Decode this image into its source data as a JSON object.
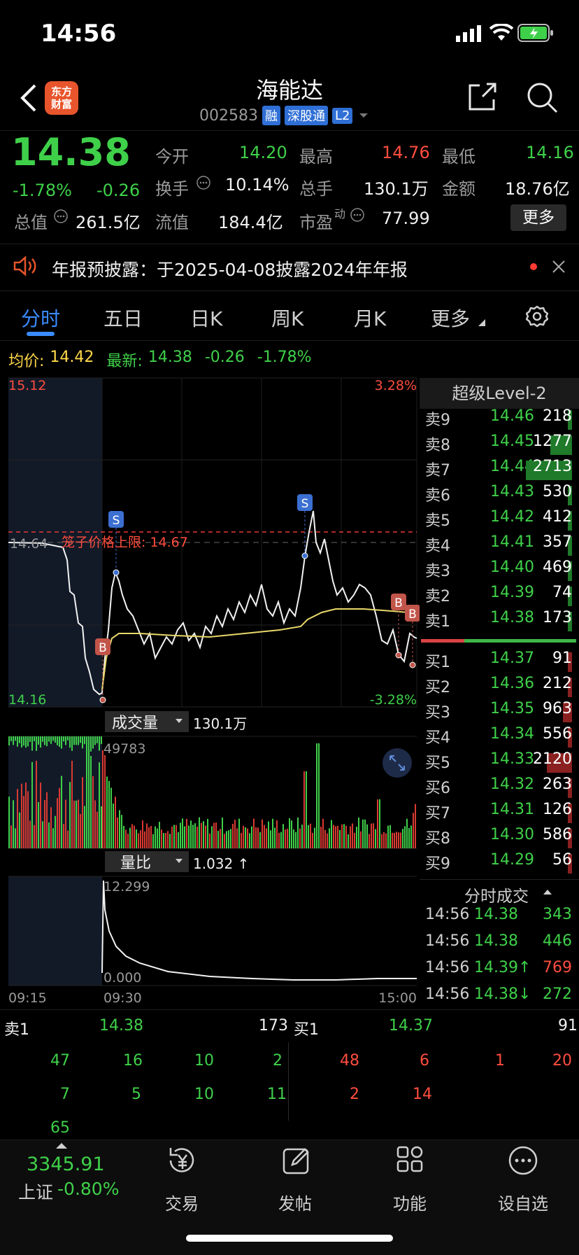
{
  "status_bar": {
    "time": "14:56"
  },
  "header": {
    "logo_text": "东方\n财富",
    "logo_line1": "东方",
    "logo_line2": "财富",
    "title": "海能达",
    "code": "002583",
    "tags": [
      "融",
      "深股通",
      "L2"
    ]
  },
  "quote": {
    "price": "14.38",
    "change_pct": "-1.78%",
    "change": "-0.26",
    "open_label": "今开",
    "open": "14.20",
    "high_label": "最高",
    "high": "14.76",
    "low_label": "最低",
    "low": "14.16",
    "turnover_label": "换手",
    "turnover": "10.14%",
    "volume_label": "总手",
    "volume": "130.1万",
    "amount_label": "金额",
    "amount": "18.76亿",
    "mktcap_label": "总值",
    "mktcap": "261.5亿",
    "float_label": "流值",
    "float": "184.4亿",
    "pe_label": "市盈",
    "pe_sup": "动",
    "pe": "77.99",
    "more": "更多"
  },
  "notice": {
    "text": "年报预披露：于2025-04-08披露2024年年报"
  },
  "tabs": [
    "分时",
    "五日",
    "日K",
    "周K",
    "月K",
    "更多"
  ],
  "avg_line": {
    "avg_label": "均价:",
    "avg": "14.42",
    "latest_label": "最新:",
    "latest": "14.38",
    "change": "-0.26",
    "change_pct": "-1.78%"
  },
  "chart_data": {
    "type": "line",
    "price_top": "15.12",
    "price_bottom": "14.16",
    "pct_top": "3.28%",
    "pct_bottom": "-3.28%",
    "prev_close_partial": "14.64",
    "limit_label": "笼子价格上限: 14.67",
    "x_labels": [
      "09:15",
      "09:30",
      "15:00"
    ],
    "volume_label": "成交量",
    "volume_total": "130.1万",
    "volume_max": "49783",
    "ratio_label": "量比",
    "ratio_value": "1.032 ↑",
    "ratio_max": "12.299",
    "ratio_min": "0.000",
    "signals": [
      "S",
      "S",
      "B",
      "B",
      "B"
    ]
  },
  "order_book": {
    "title": "超级Level-2",
    "asks": [
      {
        "name": "卖9",
        "price": "14.46",
        "vol": "218",
        "w": 0.03
      },
      {
        "name": "卖8",
        "price": "14.45",
        "vol": "1277",
        "w": 0.47
      },
      {
        "name": "卖7",
        "price": "14.44",
        "vol": "2713",
        "w": 1.0
      },
      {
        "name": "卖6",
        "price": "14.43",
        "vol": "530",
        "w": 0.05
      },
      {
        "name": "卖5",
        "price": "14.42",
        "vol": "412",
        "w": 0.04
      },
      {
        "name": "卖4",
        "price": "14.41",
        "vol": "357",
        "w": 0.04
      },
      {
        "name": "卖3",
        "price": "14.40",
        "vol": "469",
        "w": 0.05
      },
      {
        "name": "卖2",
        "price": "14.39",
        "vol": "74",
        "w": 0.01
      },
      {
        "name": "卖1",
        "price": "14.38",
        "vol": "173",
        "w": 0.02
      }
    ],
    "bids": [
      {
        "name": "买1",
        "price": "14.37",
        "vol": "91",
        "w": 0.01
      },
      {
        "name": "买2",
        "price": "14.36",
        "vol": "212",
        "w": 0.03
      },
      {
        "name": "买3",
        "price": "14.35",
        "vol": "963",
        "w": 0.2
      },
      {
        "name": "买4",
        "price": "14.34",
        "vol": "556",
        "w": 0.06
      },
      {
        "name": "买5",
        "price": "14.33",
        "vol": "2120",
        "w": 0.55
      },
      {
        "name": "买6",
        "price": "14.32",
        "vol": "263",
        "w": 0.03
      },
      {
        "name": "买7",
        "price": "14.31",
        "vol": "126",
        "w": 0.02
      },
      {
        "name": "买8",
        "price": "14.30",
        "vol": "586",
        "w": 0.06
      },
      {
        "name": "买9",
        "price": "14.29",
        "vol": "56",
        "w": 0.01
      }
    ],
    "trades_title": "分时成交",
    "trades": [
      {
        "time": "14:56",
        "price": "14.38",
        "vol": "343",
        "pc": "green",
        "vc": "green"
      },
      {
        "time": "14:56",
        "price": "14.38",
        "vol": "446",
        "pc": "green",
        "vc": "green"
      },
      {
        "time": "14:56",
        "price": "14.39↑",
        "vol": "769",
        "pc": "green",
        "vc": "red"
      },
      {
        "time": "14:56",
        "price": "14.38↓",
        "vol": "272",
        "pc": "green",
        "vc": "green"
      }
    ]
  },
  "strip": {
    "sell_label": "卖1",
    "sell_price": "14.38",
    "sell_vol": "173",
    "buy_label": "买1",
    "buy_price": "14.37",
    "buy_vol": "91",
    "sell_row1": [
      "47",
      "16",
      "10",
      "2"
    ],
    "sell_row2": [
      "7",
      "5",
      "10",
      "11"
    ],
    "sell_row3": [
      "65"
    ],
    "buy_row1": [
      "48",
      "6",
      "1",
      "20"
    ],
    "buy_row2": [
      "2",
      "14"
    ]
  },
  "nav": {
    "index_value": "3345.91",
    "index_name": "上证",
    "index_change": "-0.80%",
    "items": [
      "交易",
      "发帖",
      "功能",
      "设自选"
    ]
  },
  "colors": {
    "up": "#ff4d3f",
    "down": "#3fd04a",
    "accent": "#2f6fd6"
  }
}
